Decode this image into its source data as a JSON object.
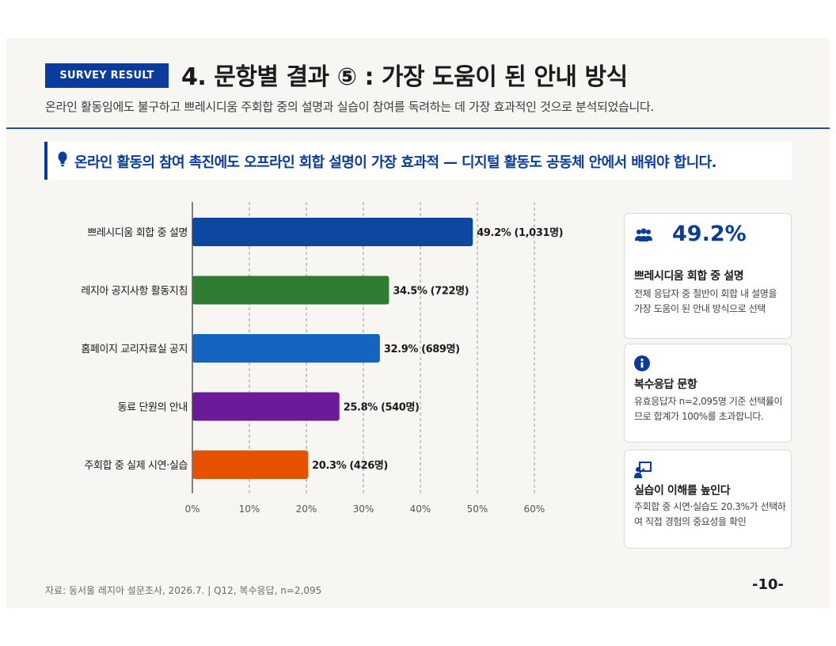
{
  "header": {
    "badge": "SURVEY RESULT",
    "title": "4. 문항별 결과 ⑤ : 가장 도움이 된 안내 방식",
    "subtitle": "온라인 활동임에도 불구하고 쁘레시디움 주회합 중의 설명과 실습이 참여를 독려하는 데 가장 효과적인 것으로 분석되었습니다."
  },
  "callout": {
    "text": "온라인 활동의 참여 촉진에도 오프라인 회합 설명이 가장 효과적 — 디지털 활동도 공동체 안에서 배워야 합니다."
  },
  "chart_data": {
    "type": "bar",
    "orientation": "horizontal",
    "categories": [
      "쁘레시디움 회합 중 설명",
      "레지아 공지사항 활동지침",
      "홈페이지 교리자료실 공지",
      "동료 단원의 안내",
      "주회합 중 실제 시연·실습"
    ],
    "values": [
      49.2,
      34.5,
      32.9,
      25.8,
      20.3
    ],
    "counts": [
      1031,
      722,
      689,
      540,
      426
    ],
    "data_labels": [
      "49.2% (1,031명)",
      "34.5% (722명)",
      "32.9% (689명)",
      "25.8% (540명)",
      "20.3% (426명)"
    ],
    "colors": [
      "#0d47a1",
      "#2e7d32",
      "#1565c0",
      "#6a1b9a",
      "#e65100"
    ],
    "xticks": [
      "0%",
      "10%",
      "20%",
      "30%",
      "40%",
      "50%",
      "60%"
    ],
    "xlim": [
      0,
      60
    ],
    "grid": "vertical dashed"
  },
  "cards": [
    {
      "icon": "people-icon",
      "value": "49.2%",
      "title": "쁘레시디움 회합 중 설명",
      "body": "전체 응답자 중 절반이 회합 내 설명을 가장 도움이 된 안내 방식으로 선택"
    },
    {
      "icon": "info-icon",
      "title": "복수응답 문항",
      "body": "유효응답자 n=2,095명 기준 선택률이므로 합계가 100%를 초과합니다."
    },
    {
      "icon": "teacher-icon",
      "title": "실습이 이해를 높인다",
      "body": "주회합 중 시연·실습도 20.3%가 선택하여 직접 경험의 중요성을 확인"
    }
  ],
  "footer": {
    "source": "자료: 동서울 레지아 설문조사, 2026.7. | Q12, 복수응답, n=2,095",
    "page": "-10-"
  },
  "colors": {
    "accent": "#0b3b9c",
    "background": "#f7f6f3"
  }
}
